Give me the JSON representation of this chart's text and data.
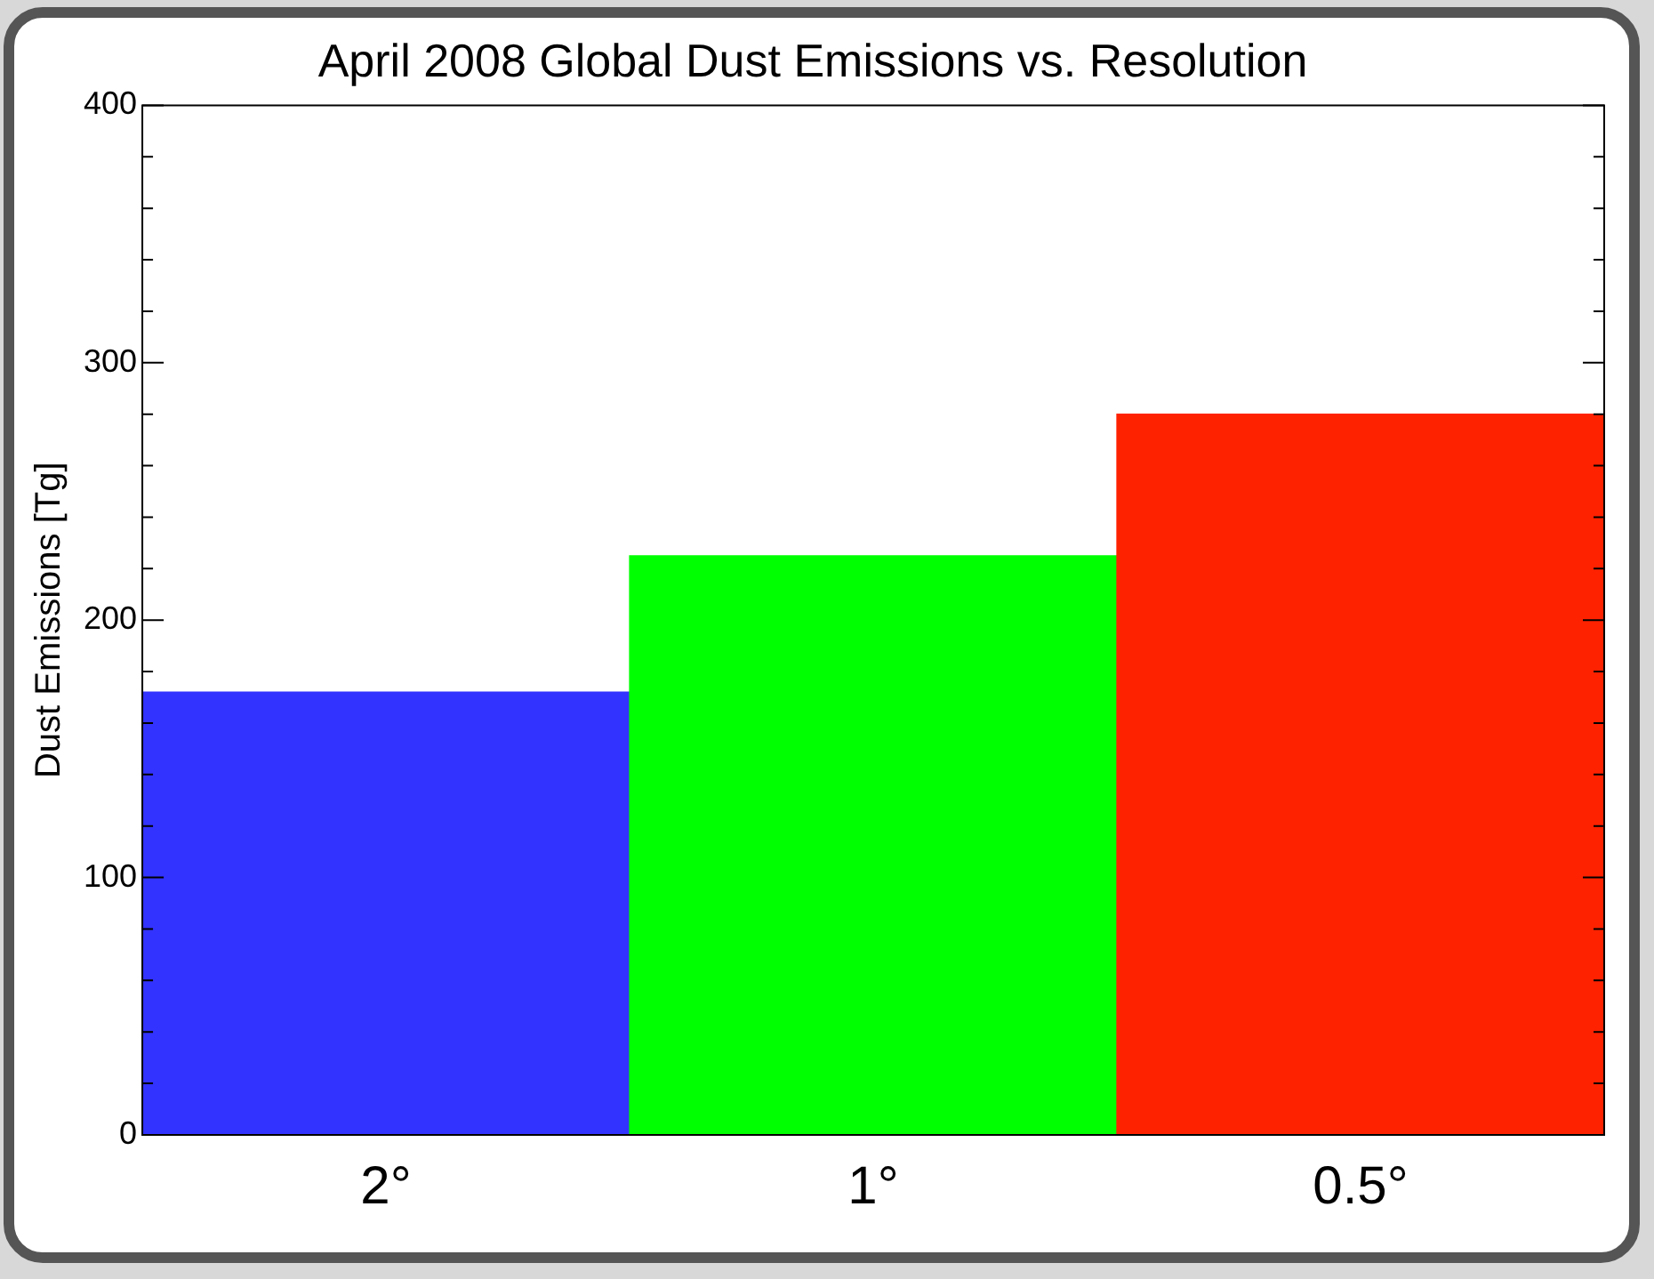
{
  "chart_data": {
    "type": "bar",
    "title": "April 2008 Global Dust Emissions vs. Resolution",
    "ylabel": "Dust Emissions [Tg]",
    "categories": [
      "2°",
      "1°",
      "0.5°"
    ],
    "values": [
      172,
      225,
      280
    ],
    "colors": [
      "#3333ff",
      "#00ff00",
      "#ff2200"
    ],
    "ylim": [
      0,
      400
    ],
    "yticks": [
      0,
      {
        "value": 20,
        "label": null
      },
      {
        "value": 40,
        "label": null
      },
      {
        "value": 60,
        "label": null
      },
      {
        "value": 80,
        "label": null
      },
      100,
      {
        "value": 120,
        "label": null
      },
      {
        "value": 140,
        "label": null
      },
      {
        "value": 160,
        "label": null
      },
      {
        "value": 180,
        "label": null
      },
      200,
      {
        "value": 220,
        "label": null
      },
      {
        "value": 240,
        "label": null
      },
      {
        "value": 260,
        "label": null
      },
      {
        "value": 280,
        "label": null
      },
      300,
      {
        "value": 320,
        "label": null
      },
      {
        "value": 340,
        "label": null
      },
      {
        "value": 360,
        "label": null
      },
      {
        "value": 380,
        "label": null
      },
      400
    ],
    "grid": false,
    "legend": false
  }
}
